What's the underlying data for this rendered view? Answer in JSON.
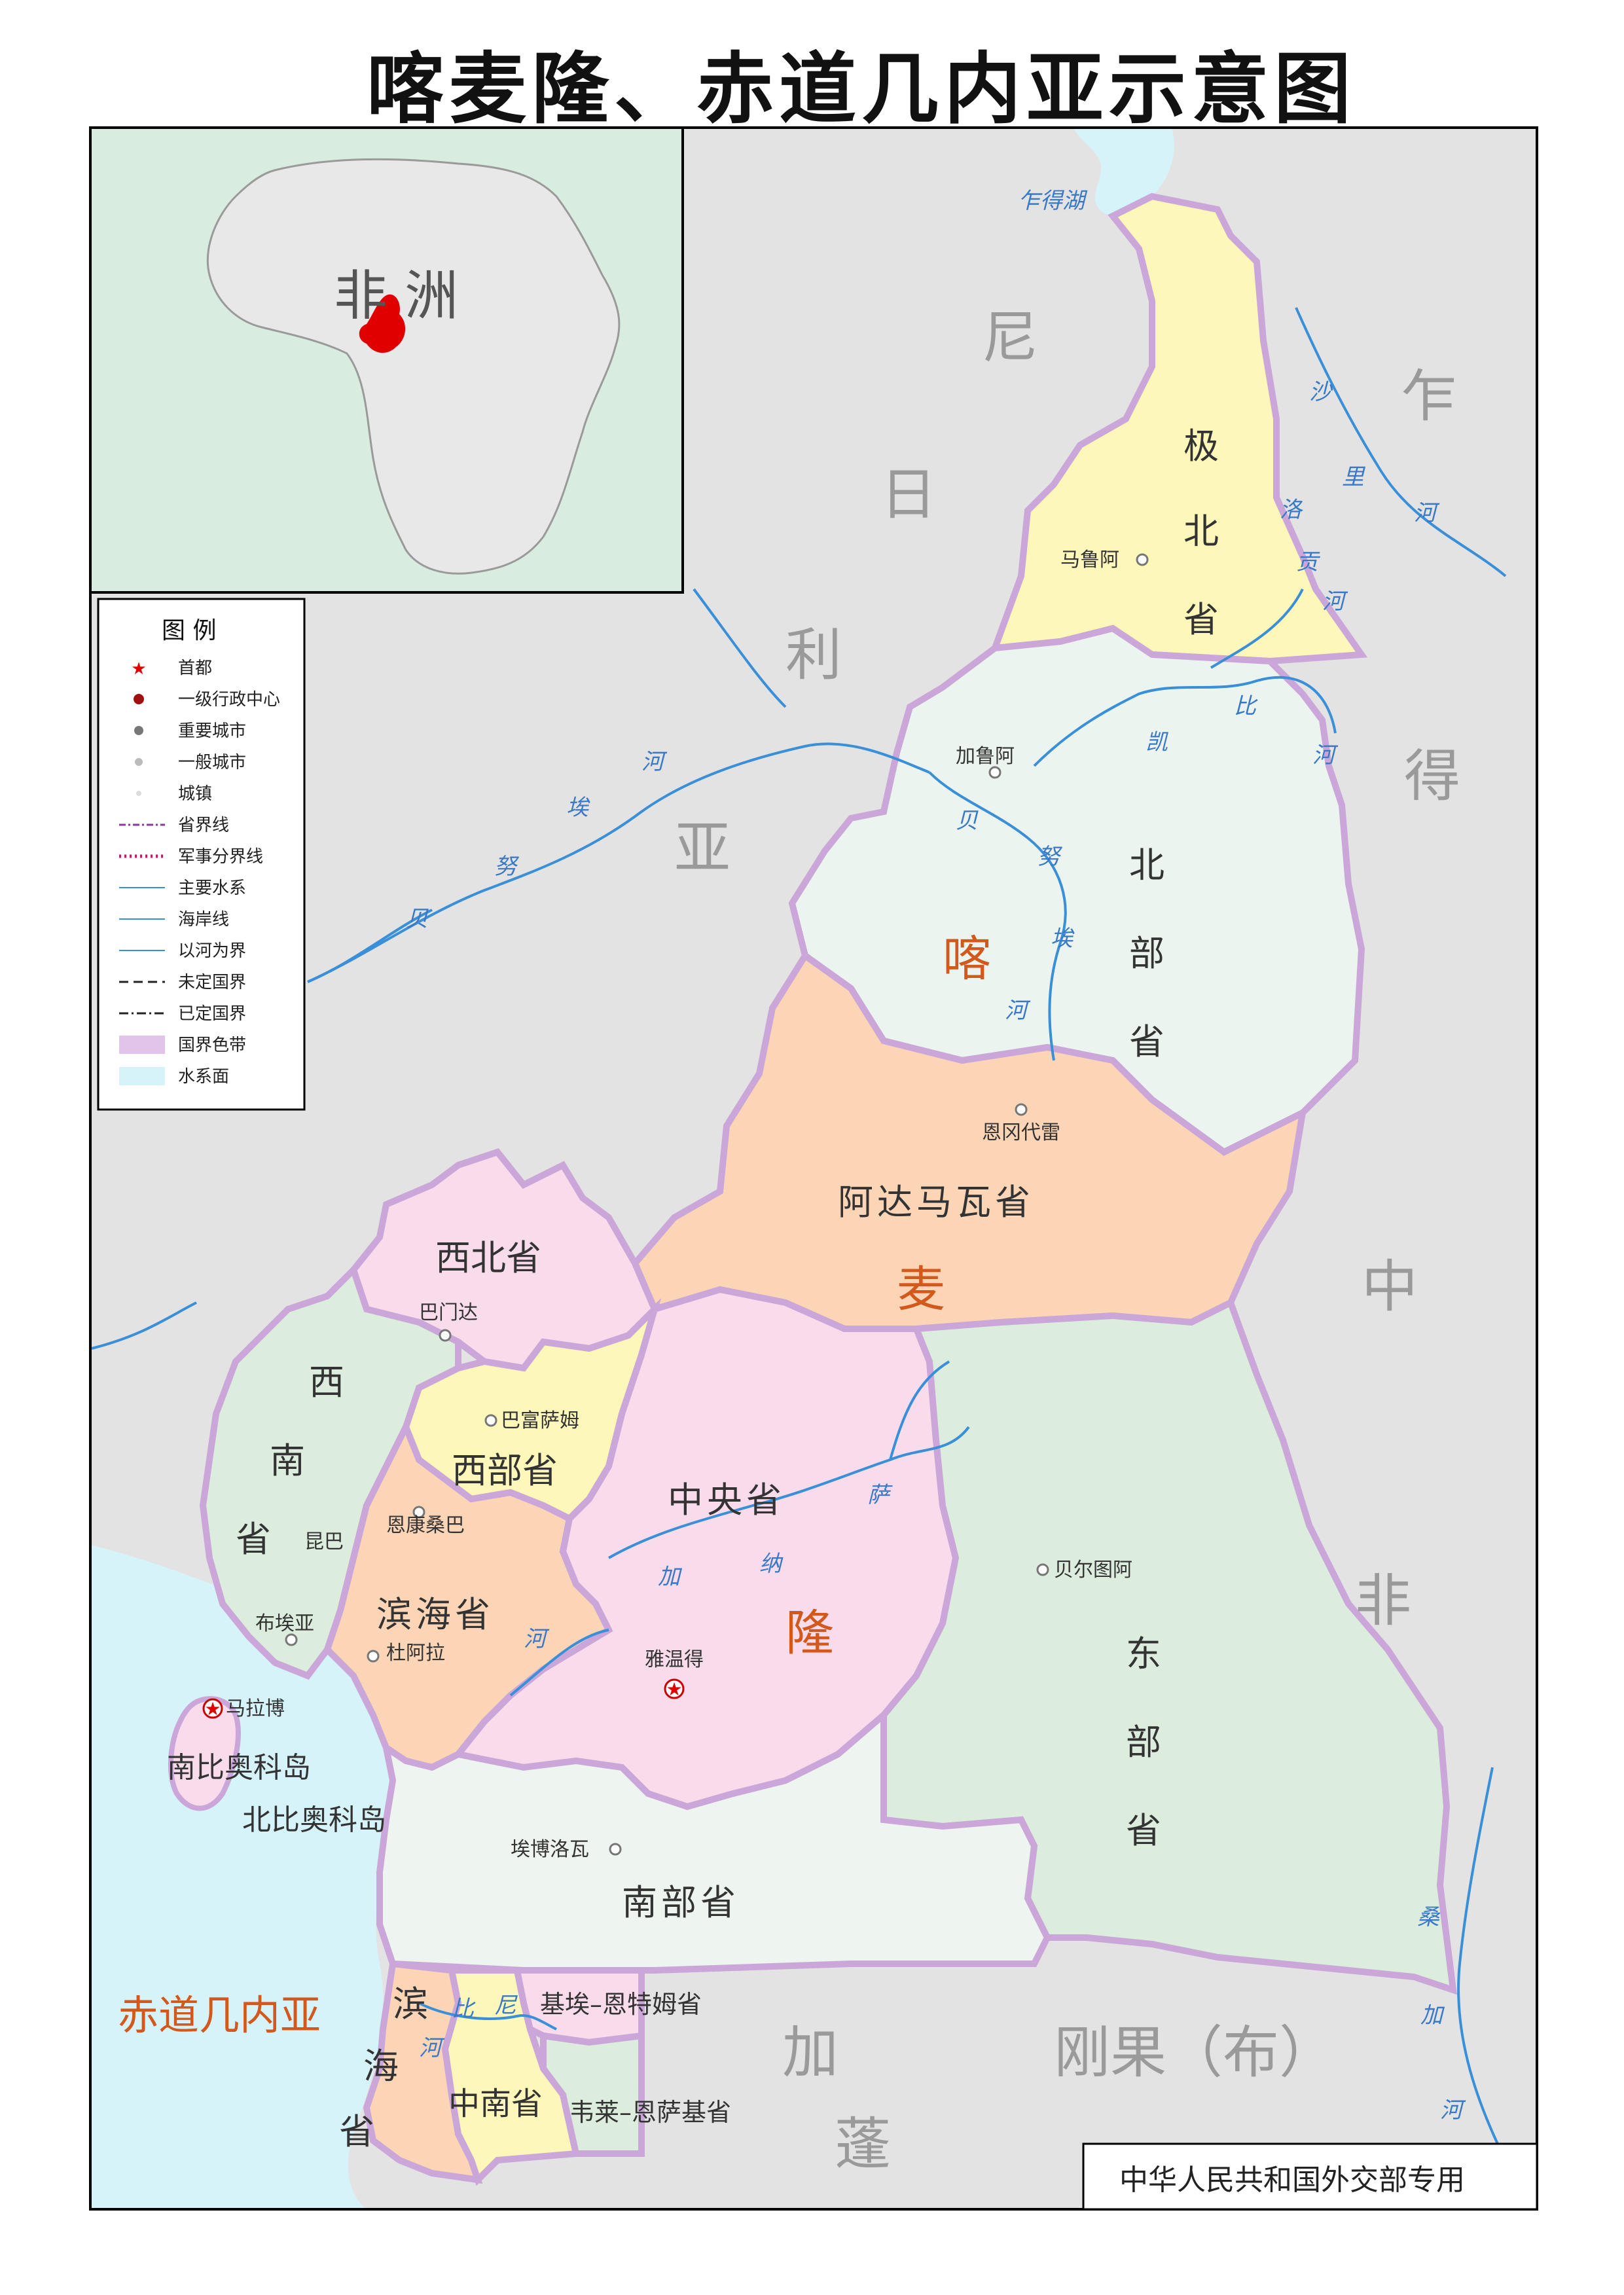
{
  "title": "喀麦隆、赤道几内亚示意图",
  "inset": {
    "label": "非 洲"
  },
  "legend": {
    "title": "图 例",
    "items": [
      {
        "label": "首都",
        "symbol": "capital-star"
      },
      {
        "label": "一级行政中心",
        "symbol": "admin-center-dot"
      },
      {
        "label": "重要城市",
        "symbol": "major-city-dot"
      },
      {
        "label": "一般城市",
        "symbol": "city-dot"
      },
      {
        "label": "城镇",
        "symbol": "town-dot"
      },
      {
        "label": "省界线",
        "symbol": "province-boundary-line"
      },
      {
        "label": "军事分界线",
        "symbol": "military-line"
      },
      {
        "label": "主要水系",
        "symbol": "river-line"
      },
      {
        "label": "海岸线",
        "symbol": "coast-line"
      },
      {
        "label": "以河为界",
        "symbol": "river-boundary-line"
      },
      {
        "label": "未定国界",
        "symbol": "undefined-border-line"
      },
      {
        "label": "已定国界",
        "symbol": "defined-border-line"
      },
      {
        "label": "国界色带",
        "symbol": "border-band"
      },
      {
        "label": "水系面",
        "symbol": "water-area"
      }
    ]
  },
  "countries": {
    "nigeria": [
      "尼",
      "日",
      "利",
      "亚"
    ],
    "chad": [
      "乍",
      "得"
    ],
    "car": [
      "中",
      "非"
    ],
    "gabon": [
      "加",
      "蓬"
    ],
    "congo": "刚果（布）",
    "equatorial_guinea": "赤道几内亚"
  },
  "cameroon_chars": [
    "喀",
    "麦",
    "隆"
  ],
  "provinces": {
    "far_north": [
      "极",
      "北",
      "省"
    ],
    "north": [
      "北",
      "部",
      "省"
    ],
    "adamawa": "阿达马瓦省",
    "northwest": "西北省",
    "west": "西部省",
    "southwest": [
      "西",
      "南",
      "省"
    ],
    "littoral": "滨海省",
    "centre": "中央省",
    "east": [
      "东",
      "部",
      "省"
    ],
    "south": "南部省",
    "bioko_sur": "南比奥科岛",
    "bioko_norte": "北比奥科岛",
    "litoral_eg": [
      "滨",
      "海",
      "省"
    ],
    "centro_sur": "中南省",
    "kie_ntem": "基埃–恩特姆省",
    "wele_nzas": "韦莱–恩萨基省"
  },
  "cities": {
    "yaounde": "雅温得",
    "malabo": "马拉博",
    "maroua": "马鲁阿",
    "garoua": "加鲁阿",
    "ngaoundere": "恩冈代雷",
    "bamenda": "巴门达",
    "bafoussam": "巴富萨姆",
    "nkongsamba": "恩康桑巴",
    "kumba": "昆巴",
    "buea": "布埃亚",
    "douala": "杜阿拉",
    "bertoua": "贝尔图阿",
    "ebolowa": "埃博洛瓦"
  },
  "rivers": {
    "lake_chad": "乍得湖",
    "chari": [
      "沙",
      "里",
      "河"
    ],
    "logone": [
      "洛",
      "贡",
      "河"
    ],
    "mbere": [
      "凯",
      "比",
      "河"
    ],
    "benue_nigeria": [
      "贝",
      "努",
      "埃",
      "河"
    ],
    "benue_cameroon": [
      "贝",
      "努",
      "埃",
      "河"
    ],
    "sanaga": [
      "萨",
      "纳",
      "加",
      "河"
    ],
    "sangha": [
      "桑",
      "加",
      "河"
    ],
    "mbini": [
      "比",
      "尼",
      "河"
    ]
  },
  "footer": "中华人民共和国外交部专用",
  "colors": {
    "far_north": "#fdf7b9",
    "north": "#ebf4ee",
    "adamawa": "#fbd5b5",
    "northwest": "#f9dcec",
    "west": "#fdf7b9",
    "southwest": "#dcedde",
    "littoral": "#fbd5b5",
    "centre": "#f9dcec",
    "east": "#dcedde",
    "south": "#eef4ef",
    "foreign_land": "#e3e3e3",
    "sea": "#d6f3fa",
    "border_band": "#e2c3ea",
    "river": "#3a8fd9",
    "country_name_gray": "#9a9a9a",
    "cameroon_name_orange": "#d2581c"
  }
}
